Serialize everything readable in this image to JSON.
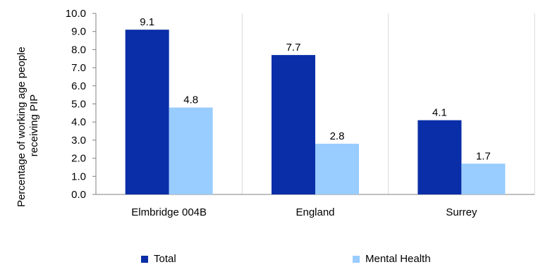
{
  "chart_data": {
    "type": "bar",
    "categories": [
      "Elmbridge 004B",
      "England",
      "Surrey"
    ],
    "series": [
      {
        "name": "Total",
        "values": [
          9.1,
          7.7,
          4.1
        ],
        "color": "#0a2ea8"
      },
      {
        "name": "Mental Health",
        "values": [
          4.8,
          2.8,
          1.7
        ],
        "color": "#99ccff"
      }
    ],
    "ylabel": "Percentage of working age people receiving PIP",
    "ylabel_lines": [
      "Percentage of working age people",
      "receiving PIP"
    ],
    "ylim": [
      0,
      10
    ],
    "yticks": [
      "0.0",
      "1.0",
      "2.0",
      "3.0",
      "4.0",
      "5.0",
      "6.0",
      "7.0",
      "8.0",
      "9.0",
      "10.0"
    ],
    "grid": "vertical-category-separators",
    "legend": "bottom"
  }
}
